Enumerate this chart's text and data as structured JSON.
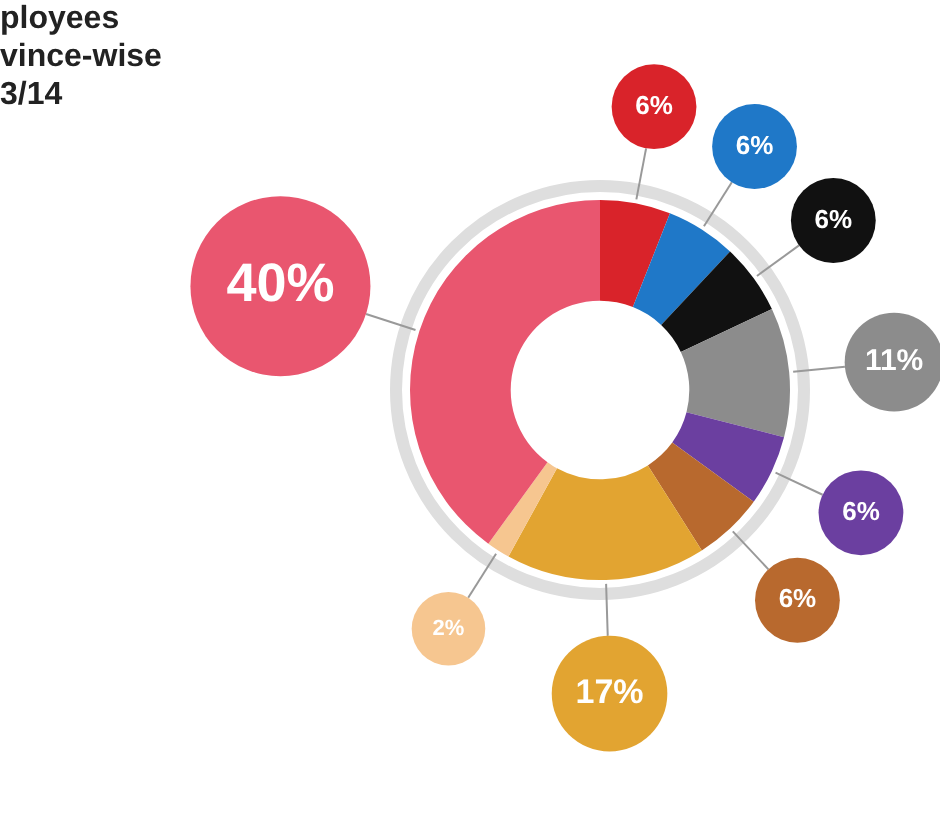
{
  "chart_data": {
    "type": "donut",
    "title": "ployees\nvince-wise\n3/14",
    "categories": [
      null,
      null,
      null,
      null,
      null,
      null,
      null,
      null,
      null
    ],
    "values": [
      6,
      6,
      6,
      11,
      6,
      6,
      17,
      2,
      40
    ],
    "colors": [
      "#d9232a",
      "#1f78c8",
      "#111111",
      "#8c8c8c",
      "#6b3fa0",
      "#b8692e",
      "#e2a431",
      "#f6c690",
      "#e9566f"
    ],
    "value_labels": [
      "6%",
      "6%",
      "6%",
      "11%",
      "6%",
      "6%",
      "17%",
      "2%",
      "40%"
    ],
    "legend": false
  }
}
